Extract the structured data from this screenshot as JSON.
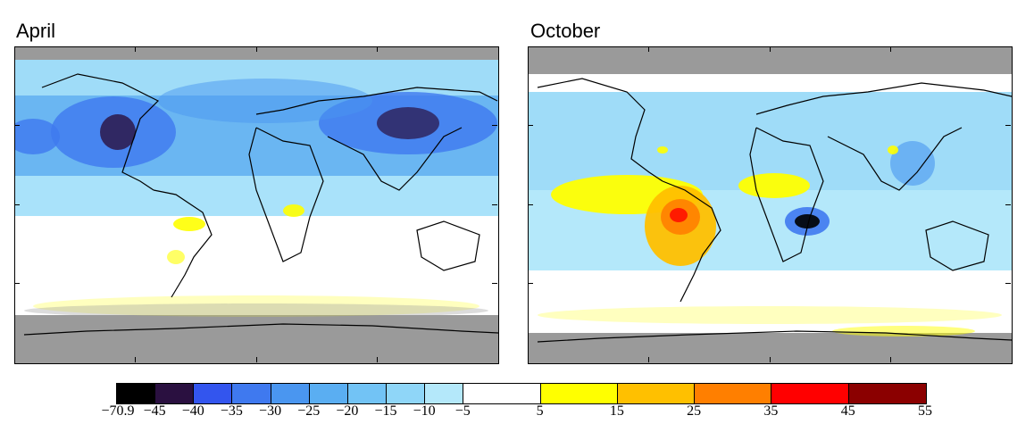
{
  "panels": [
    {
      "title": "April"
    },
    {
      "title": "October"
    }
  ],
  "colorbar": {
    "labels": [
      "-70.9",
      "-45",
      "-40",
      "-35",
      "-30",
      "-25",
      "-20",
      "-15",
      "-10",
      "-5",
      "5",
      "15",
      "25",
      "35",
      "45",
      "55"
    ],
    "colors": [
      "#000000",
      "#2a1040",
      "#3355ee",
      "#3f79ef",
      "#4a96f0",
      "#5aaef2",
      "#72c3f5",
      "#8fd6f8",
      "#b4e8fa",
      "#ffffff",
      "#ffff00",
      "#ffc000",
      "#ff7f00",
      "#ff0000",
      "#8b0000"
    ]
  },
  "colors": {
    "nodata": "#9a9a9a",
    "coast": "#000000"
  }
}
